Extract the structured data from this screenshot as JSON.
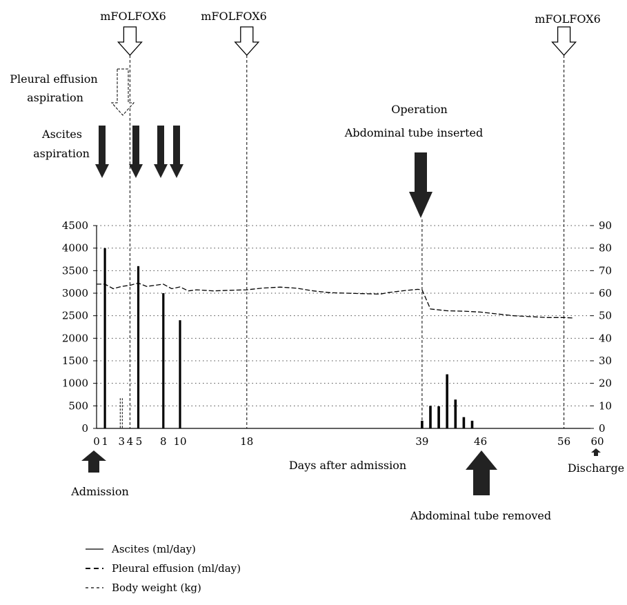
{
  "chart_data": {
    "type": "bar",
    "xlabel": "Days after admission",
    "x_ticks": [
      "0",
      "1",
      "3",
      "4",
      "5",
      "8",
      "10",
      "18",
      "39",
      "46",
      "56",
      "60"
    ],
    "x_tick_values": [
      0,
      1,
      3,
      4,
      5,
      8,
      10,
      18,
      39,
      46,
      56,
      60
    ],
    "y_left_ticks": [
      "0",
      "500",
      "1000",
      "1500",
      "2000",
      "2500",
      "3000",
      "3500",
      "4000",
      "4500"
    ],
    "y_right_ticks": [
      "0",
      "10",
      "20",
      "30",
      "40",
      "50",
      "60",
      "70",
      "80",
      "90"
    ],
    "xlim": [
      0,
      60
    ],
    "ylim_left": [
      0,
      4500
    ],
    "ylim_right": [
      0,
      90
    ],
    "grid": "horizontal dotted",
    "legend_position": "bottom-left",
    "legend": [
      {
        "label": "Ascites (ml/day)",
        "style": "solid"
      },
      {
        "label": "Pleural effusion (ml/day)",
        "style": "dashed-long"
      },
      {
        "label": "Body weight (kg)",
        "style": "dashed-short"
      }
    ],
    "series": [
      {
        "name": "Ascites (ml/day)",
        "axis": "left",
        "style": "bar",
        "points": [
          {
            "x": 1,
            "y": 4000
          },
          {
            "x": 5,
            "y": 3600
          },
          {
            "x": 8,
            "y": 3000
          },
          {
            "x": 10,
            "y": 2400
          },
          {
            "x": 39,
            "y": 170
          },
          {
            "x": 40,
            "y": 500
          },
          {
            "x": 41,
            "y": 490
          },
          {
            "x": 42,
            "y": 1200
          },
          {
            "x": 43,
            "y": 640
          },
          {
            "x": 44,
            "y": 250
          },
          {
            "x": 45,
            "y": 170
          }
        ]
      },
      {
        "name": "Pleural effusion (ml/day)",
        "axis": "left",
        "style": "bar-dashed",
        "points": [
          {
            "x": 3,
            "y": 670
          }
        ]
      },
      {
        "name": "Body weight (kg)",
        "axis": "right",
        "style": "line-dashed",
        "points": [
          {
            "x": 0,
            "y": 64
          },
          {
            "x": 1,
            "y": 64
          },
          {
            "x": 2,
            "y": 62
          },
          {
            "x": 3,
            "y": 63
          },
          {
            "x": 4,
            "y": 63.5
          },
          {
            "x": 5,
            "y": 64.5
          },
          {
            "x": 6,
            "y": 63
          },
          {
            "x": 7,
            "y": 63.5
          },
          {
            "x": 8,
            "y": 64
          },
          {
            "x": 9,
            "y": 62
          },
          {
            "x": 10,
            "y": 62.8
          },
          {
            "x": 11,
            "y": 61
          },
          {
            "x": 12,
            "y": 61.5
          },
          {
            "x": 14,
            "y": 61
          },
          {
            "x": 16,
            "y": 61.3
          },
          {
            "x": 18,
            "y": 61.5
          },
          {
            "x": 20,
            "y": 62.3
          },
          {
            "x": 22,
            "y": 62.7
          },
          {
            "x": 24,
            "y": 62.2
          },
          {
            "x": 26,
            "y": 61
          },
          {
            "x": 28,
            "y": 60.2
          },
          {
            "x": 30,
            "y": 60
          },
          {
            "x": 32,
            "y": 59.8
          },
          {
            "x": 34,
            "y": 59.6
          },
          {
            "x": 35,
            "y": 60.3
          },
          {
            "x": 37,
            "y": 61.2
          },
          {
            "x": 38.5,
            "y": 61.7
          },
          {
            "x": 39,
            "y": 61.5
          },
          {
            "x": 40,
            "y": 53
          },
          {
            "x": 41,
            "y": 52.6
          },
          {
            "x": 42,
            "y": 52.2
          },
          {
            "x": 44,
            "y": 52
          },
          {
            "x": 46,
            "y": 51.6
          },
          {
            "x": 48,
            "y": 50.8
          },
          {
            "x": 50,
            "y": 50
          },
          {
            "x": 52,
            "y": 49.6
          },
          {
            "x": 54,
            "y": 49.2
          },
          {
            "x": 56,
            "y": 49.2
          },
          {
            "x": 57,
            "y": 49
          }
        ]
      }
    ],
    "events": {
      "chemo": {
        "label": "mFOLFOX6",
        "days": [
          4,
          18,
          56
        ]
      },
      "ascites_aspiration": {
        "label": [
          "Ascites",
          "aspiration"
        ],
        "days": [
          1,
          5,
          8,
          10
        ]
      },
      "pleural_aspiration": {
        "label": [
          "Pleural effusion",
          "aspiration"
        ],
        "day": 4
      },
      "operation": {
        "label": [
          "Operation",
          "Abdominal tube inserted"
        ],
        "day": 39
      },
      "admission": {
        "label": "Admission",
        "day": 1
      },
      "tube_removed": {
        "label": "Abdominal tube removed",
        "day": 46
      },
      "discharge": {
        "label": "Discharge",
        "day": 60
      }
    }
  }
}
